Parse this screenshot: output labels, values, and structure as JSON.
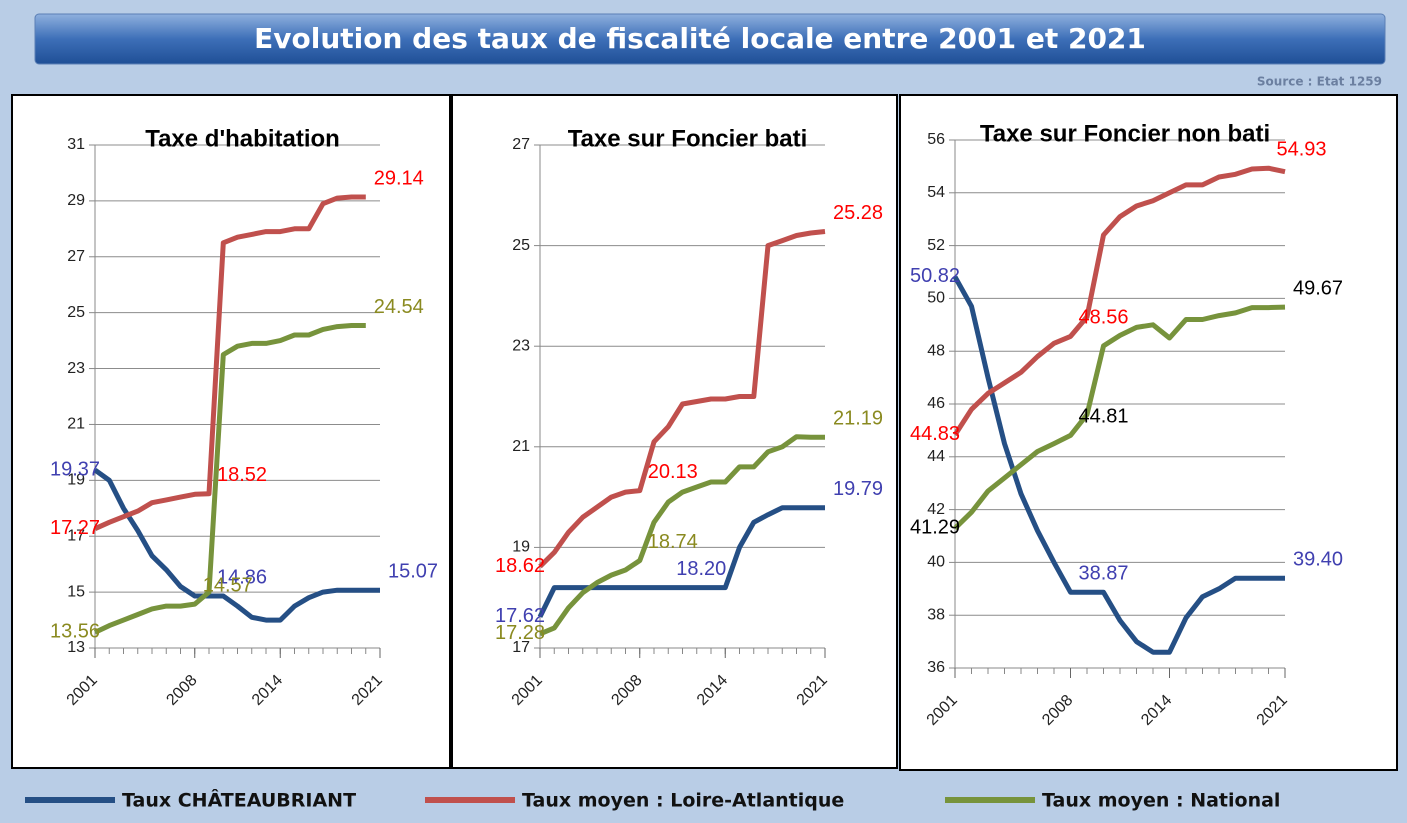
{
  "title": "Evolution des taux de fiscalité locale entre 2001 et 2021",
  "source": "Source : Etat 1259",
  "legend": [
    {
      "name": "Taux CHÂTEAUBRIANT",
      "color": "#254f85"
    },
    {
      "name": "Taux moyen : Loire-Atlantique",
      "color": "#c0504d"
    },
    {
      "name": "Taux moyen : National",
      "color": "#77933c"
    }
  ],
  "chart_data": [
    {
      "type": "line",
      "title": "Taxe d'habitation",
      "x": [
        2001,
        2002,
        2003,
        2004,
        2005,
        2006,
        2007,
        2008,
        2009,
        2010,
        2011,
        2012,
        2013,
        2014,
        2015,
        2016,
        2017,
        2018,
        2019,
        2020,
        2021
      ],
      "xlim": [
        2001,
        2021
      ],
      "xticks": [
        2001,
        2008,
        2014,
        2021
      ],
      "ylim": [
        13,
        31
      ],
      "yticks": [
        13,
        15,
        17,
        19,
        21,
        23,
        25,
        27,
        29,
        31
      ],
      "grid": true,
      "series": [
        {
          "color": "#254f85",
          "label_color": "#4040b0",
          "values": [
            19.37,
            19.0,
            18.0,
            17.2,
            16.3,
            15.8,
            15.2,
            14.86,
            14.86,
            14.86,
            14.5,
            14.1,
            14.0,
            14.0,
            14.5,
            14.8,
            15.0,
            15.07,
            15.07,
            15.07,
            15.07
          ],
          "value_labels": [
            "19.37",
            null,
            null,
            null,
            null,
            null,
            null,
            null,
            "14.86",
            null,
            null,
            null,
            null,
            null,
            null,
            null,
            null,
            null,
            null,
            null,
            "15.07"
          ]
        },
        {
          "color": "#c0504d",
          "label_color": "#ff0000",
          "values": [
            17.27,
            17.5,
            17.7,
            17.9,
            18.2,
            18.3,
            18.4,
            18.5,
            18.52,
            27.5,
            27.7,
            27.8,
            27.9,
            27.9,
            28.0,
            28.0,
            28.9,
            29.1,
            29.14,
            29.14,
            null
          ],
          "value_labels": [
            "17.27",
            null,
            null,
            null,
            null,
            null,
            null,
            null,
            "18.52",
            null,
            null,
            null,
            null,
            null,
            null,
            null,
            null,
            null,
            null,
            "29.14",
            null
          ]
        },
        {
          "color": "#77933c",
          "label_color": "#8a8a20",
          "values": [
            13.56,
            13.8,
            14.0,
            14.2,
            14.4,
            14.5,
            14.5,
            14.57,
            15.0,
            23.5,
            23.8,
            23.9,
            23.9,
            24.0,
            24.2,
            24.2,
            24.4,
            24.5,
            24.54,
            24.54,
            null
          ],
          "value_labels": [
            "13.56",
            null,
            null,
            null,
            null,
            null,
            null,
            "14.57",
            null,
            null,
            null,
            null,
            null,
            null,
            null,
            null,
            null,
            null,
            null,
            "24.54",
            null
          ]
        }
      ]
    },
    {
      "type": "line",
      "title": "Taxe sur Foncier bati",
      "x": [
        2001,
        2002,
        2003,
        2004,
        2005,
        2006,
        2007,
        2008,
        2009,
        2010,
        2011,
        2012,
        2013,
        2014,
        2015,
        2016,
        2017,
        2018,
        2019,
        2020,
        2021
      ],
      "xlim": [
        2001,
        2021
      ],
      "xticks": [
        2001,
        2008,
        2014,
        2021
      ],
      "ylim": [
        17,
        27
      ],
      "yticks": [
        17,
        19,
        21,
        23,
        25,
        27
      ],
      "grid": true,
      "series": [
        {
          "color": "#254f85",
          "label_color": "#4040b0",
          "values": [
            17.62,
            18.2,
            18.2,
            18.2,
            18.2,
            18.2,
            18.2,
            18.2,
            18.2,
            18.2,
            18.2,
            18.2,
            18.2,
            18.2,
            19.0,
            19.5,
            19.65,
            19.79,
            19.79,
            19.79,
            19.79
          ],
          "value_labels": [
            "17.62",
            null,
            null,
            null,
            null,
            null,
            null,
            null,
            null,
            "18.20",
            null,
            null,
            null,
            null,
            null,
            null,
            null,
            null,
            null,
            null,
            "19.79"
          ]
        },
        {
          "color": "#c0504d",
          "label_color": "#ff0000",
          "values": [
            18.62,
            18.9,
            19.3,
            19.6,
            19.8,
            20.0,
            20.1,
            20.13,
            21.1,
            21.4,
            21.85,
            21.9,
            21.95,
            21.95,
            22.0,
            22.0,
            25.0,
            25.1,
            25.2,
            25.25,
            25.28
          ],
          "value_labels": [
            "18.62",
            null,
            null,
            null,
            null,
            null,
            null,
            "20.13",
            null,
            null,
            null,
            null,
            null,
            null,
            null,
            null,
            null,
            null,
            null,
            null,
            "25.28"
          ]
        },
        {
          "color": "#77933c",
          "label_color": "#8a8a20",
          "values": [
            17.28,
            17.4,
            17.8,
            18.1,
            18.3,
            18.45,
            18.55,
            18.74,
            19.5,
            19.9,
            20.1,
            20.2,
            20.3,
            20.3,
            20.6,
            20.6,
            20.9,
            21.0,
            21.2,
            21.19,
            21.19
          ],
          "value_labels": [
            "17.28",
            null,
            null,
            null,
            null,
            null,
            null,
            "18.74",
            null,
            null,
            null,
            null,
            null,
            null,
            null,
            null,
            null,
            null,
            null,
            null,
            "21.19"
          ]
        }
      ]
    },
    {
      "type": "line",
      "title": "Taxe sur Foncier non bati",
      "x": [
        2001,
        2002,
        2003,
        2004,
        2005,
        2006,
        2007,
        2008,
        2009,
        2010,
        2011,
        2012,
        2013,
        2014,
        2015,
        2016,
        2017,
        2018,
        2019,
        2020,
        2021
      ],
      "xlim": [
        2001,
        2021
      ],
      "xticks": [
        2001,
        2008,
        2014,
        2021
      ],
      "ylim": [
        36,
        56
      ],
      "yticks": [
        36,
        38,
        40,
        42,
        44,
        46,
        48,
        50,
        52,
        54,
        56
      ],
      "grid": true,
      "series": [
        {
          "color": "#254f85",
          "label_color": "#4040b0",
          "values": [
            50.82,
            49.7,
            47.0,
            44.5,
            42.6,
            41.2,
            40.0,
            38.87,
            38.87,
            38.87,
            37.8,
            37.0,
            36.6,
            36.6,
            37.9,
            38.7,
            39.0,
            39.4,
            39.4,
            39.4,
            39.4
          ],
          "value_labels": [
            "50.82",
            null,
            null,
            null,
            null,
            null,
            null,
            "38.87",
            null,
            null,
            null,
            null,
            null,
            null,
            null,
            null,
            null,
            null,
            null,
            null,
            "39.40"
          ]
        },
        {
          "color": "#c0504d",
          "label_color": "#ff0000",
          "values": [
            44.83,
            45.8,
            46.4,
            46.8,
            47.2,
            47.8,
            48.3,
            48.56,
            49.3,
            52.4,
            53.1,
            53.5,
            53.7,
            54.0,
            54.3,
            54.3,
            54.6,
            54.7,
            54.9,
            54.93,
            54.8
          ],
          "value_labels": [
            "44.83",
            null,
            null,
            null,
            null,
            null,
            null,
            "48.56",
            null,
            null,
            null,
            null,
            null,
            null,
            null,
            null,
            null,
            null,
            null,
            "54.93",
            null
          ]
        },
        {
          "color": "#77933c",
          "label_color": "#000000",
          "values": [
            41.29,
            41.9,
            42.7,
            43.2,
            43.7,
            44.2,
            44.5,
            44.81,
            45.6,
            48.2,
            48.6,
            48.9,
            49.0,
            48.5,
            49.2,
            49.2,
            49.35,
            49.45,
            49.65,
            49.65,
            49.67
          ],
          "value_labels": [
            "41.29",
            null,
            null,
            null,
            null,
            null,
            null,
            "44.81",
            null,
            null,
            null,
            null,
            null,
            null,
            null,
            null,
            null,
            null,
            null,
            null,
            "49.67"
          ]
        }
      ]
    }
  ]
}
